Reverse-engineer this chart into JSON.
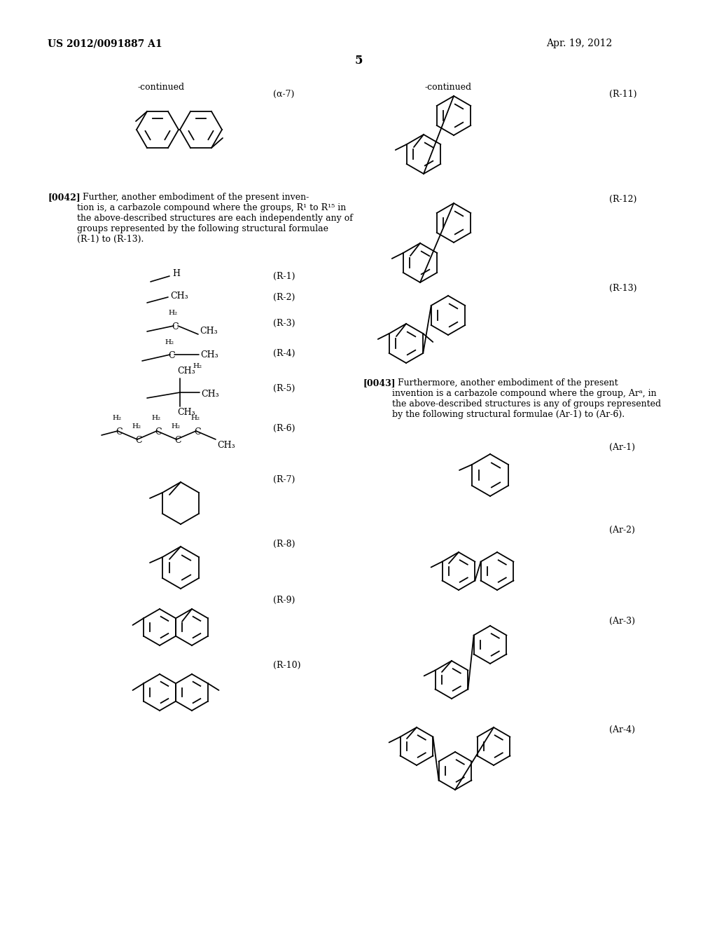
{
  "bg": "#ffffff",
  "header_left": "US 2012/0091887 A1",
  "header_right": "Apr. 19, 2012",
  "page_num": "5",
  "cont_left": "-continued",
  "cont_right": "-continued",
  "lbl_a7": "(α-7)",
  "lbl_r1": "(R-1)",
  "lbl_r2": "(R-2)",
  "lbl_r3": "(R-3)",
  "lbl_r4": "(R-4)",
  "lbl_r5": "(R-5)",
  "lbl_r6": "(R-6)",
  "lbl_r7": "(R-7)",
  "lbl_r8": "(R-8)",
  "lbl_r9": "(R-9)",
  "lbl_r10": "(R-10)",
  "lbl_r11": "(R-11)",
  "lbl_r12": "(R-12)",
  "lbl_r13": "(R-13)",
  "lbl_ar1": "(Ar-1)",
  "lbl_ar2": "(Ar-2)",
  "lbl_ar3": "(Ar-3)",
  "lbl_ar4": "(Ar-4)",
  "para42_bold": "[0042]",
  "para42_text": "  Further, another embodiment of the present inven-\ntion is, a carbazole compound where the groups, R¹ to R¹⁵ in\nthe above-described structures are each independently any of\ngroups represented by the following structural formulae\n(R-1) to (R-13).",
  "para43_bold": "[0043]",
  "para43_text": "  Furthermore, another embodiment of the present\ninvention is a carbazole compound where the group, Arᵃ, in\nthe above-described structures is any of groups represented\nby the following structural formulae (Ar-1) to (Ar-6)."
}
